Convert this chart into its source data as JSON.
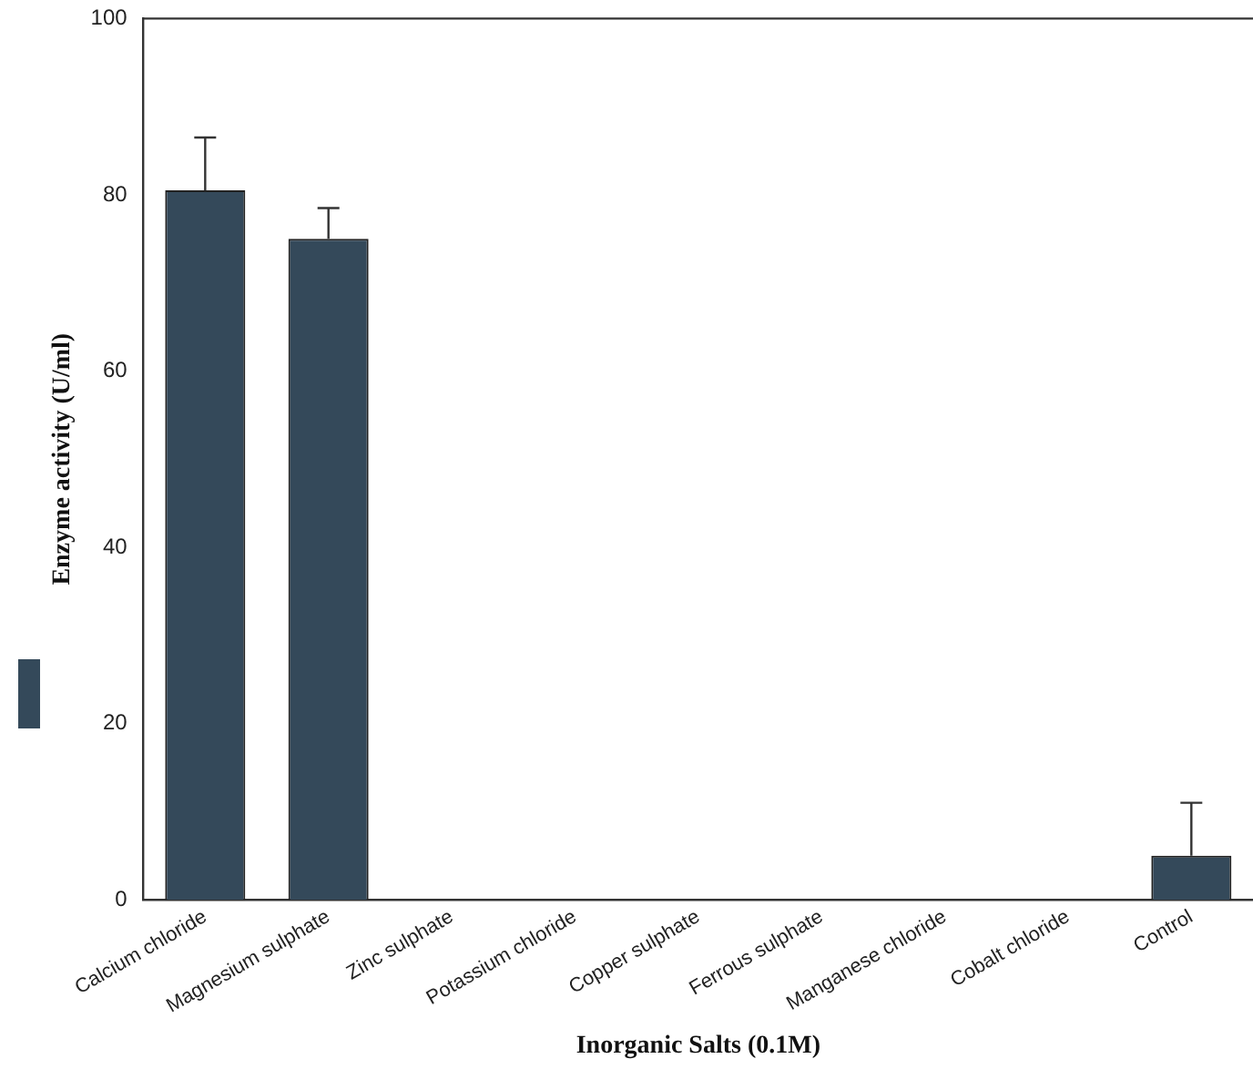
{
  "chart_data": {
    "type": "bar",
    "xlabel": "Inorganic Salts (0.1M)",
    "ylabel": "Enzyme activity (U/ml)",
    "categories": [
      "Calcium chloride",
      "Magnesium sulphate",
      "Zinc sulphate",
      "Potassium chloride",
      "Copper sulphate",
      "Ferrous sulphate",
      "Manganese chloride",
      "Cobalt chloride",
      "Control"
    ],
    "values": [
      80.5,
      75,
      0,
      0,
      0,
      0,
      0,
      0,
      5
    ],
    "errors": [
      [
        80.5,
        86.5
      ],
      [
        75,
        78.5
      ],
      null,
      null,
      null,
      null,
      null,
      null,
      [
        5,
        11
      ]
    ],
    "color": "#34495a",
    "ylim": [
      0,
      100
    ],
    "yticks": [
      0,
      20,
      40,
      60,
      80,
      100
    ],
    "grid": false
  }
}
